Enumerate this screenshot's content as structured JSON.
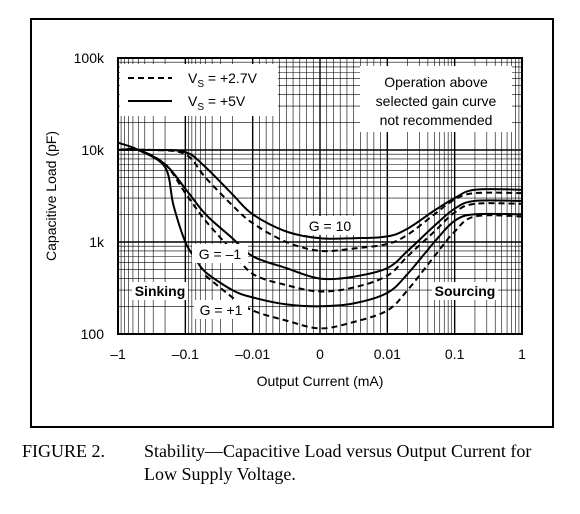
{
  "caption": {
    "figure_number": "FIGURE 2.",
    "text": "Stability—Capacitive Load versus Output Current for Low Supply Voltage."
  },
  "chart_data": {
    "type": "line",
    "xlabel": "Output Current (mA)",
    "ylabel": "Capacitive Load (pF)",
    "x_scale": "symmetric-log",
    "y_scale": "log",
    "xlim": [
      -1,
      1
    ],
    "ylim": [
      100,
      100000
    ],
    "x_ticks": [
      -1,
      -0.1,
      -0.01,
      0,
      0.01,
      0.1,
      1
    ],
    "x_tick_labels": [
      "–1",
      "–0.1",
      "–0.01",
      "0",
      "0.01",
      "0.1",
      "1"
    ],
    "y_ticks": [
      100,
      1000,
      10000,
      100000
    ],
    "y_tick_labels": [
      "100",
      "1k",
      "10k",
      "100k"
    ],
    "grid": true,
    "legend": {
      "placement": "top-left",
      "entries": [
        {
          "style": "dashed",
          "label": "V",
          "subscript": "S",
          "suffix": " = +2.7V"
        },
        {
          "style": "solid",
          "label": "V",
          "subscript": "S",
          "suffix": " = +5V"
        }
      ]
    },
    "annotations": {
      "note_lines": [
        "Operation above",
        "selected gain curve",
        "not recommended"
      ],
      "g10": "G = 10",
      "gm1": "G = –1",
      "gp1": "G = +1",
      "sinking": "Sinking",
      "sourcing": "Sourcing"
    },
    "series": [
      {
        "gain": "G = 10",
        "style": "solid",
        "x": [
          -1,
          -0.3,
          -0.1,
          -0.05,
          -0.02,
          -0.01,
          -0.005,
          0,
          0.005,
          0.01,
          0.02,
          0.05,
          0.1,
          0.2,
          1
        ],
        "y": [
          10000,
          10000,
          9500,
          6500,
          3300,
          2000,
          1300,
          1100,
          1100,
          1150,
          1400,
          2200,
          3000,
          3700,
          3700
        ]
      },
      {
        "gain": "G = 10",
        "style": "dashed",
        "x": [
          -1,
          -0.3,
          -0.1,
          -0.05,
          -0.02,
          -0.01,
          -0.005,
          0,
          0.005,
          0.01,
          0.02,
          0.05,
          0.1,
          0.2,
          1
        ],
        "y": [
          10000,
          10000,
          9000,
          5000,
          2500,
          1600,
          1000,
          800,
          850,
          950,
          1200,
          2000,
          2900,
          3400,
          3400
        ]
      },
      {
        "gain": "G = –1",
        "style": "solid",
        "x": [
          -1,
          -0.5,
          -0.2,
          -0.1,
          -0.05,
          -0.02,
          -0.01,
          -0.005,
          0,
          0.005,
          0.01,
          0.02,
          0.05,
          0.1,
          0.2,
          1
        ],
        "y": [
          10000,
          10000,
          7000,
          3800,
          2000,
          1100,
          700,
          520,
          400,
          420,
          520,
          800,
          1500,
          2300,
          2800,
          2800
        ]
      },
      {
        "gain": "G = –1",
        "style": "dashed",
        "x": [
          -1,
          -0.5,
          -0.2,
          -0.1,
          -0.05,
          -0.02,
          -0.01,
          -0.005,
          0,
          0.005,
          0.01,
          0.02,
          0.05,
          0.1,
          0.2,
          1
        ],
        "y": [
          10000,
          10000,
          7000,
          3400,
          1700,
          800,
          450,
          340,
          290,
          320,
          430,
          700,
          1300,
          2100,
          2600,
          2600
        ]
      },
      {
        "gain": "G = +1",
        "style": "solid",
        "x": [
          -1,
          -0.5,
          -0.2,
          -0.15,
          -0.1,
          -0.07,
          -0.05,
          -0.02,
          -0.01,
          -0.005,
          0,
          0.005,
          0.01,
          0.02,
          0.05,
          0.1,
          0.2,
          1
        ],
        "y": [
          12000,
          10000,
          6500,
          2500,
          1000,
          650,
          470,
          300,
          250,
          210,
          200,
          215,
          280,
          450,
          1000,
          1700,
          2000,
          2000
        ]
      },
      {
        "gain": "G = +1",
        "style": "dashed",
        "x": [
          -0.05,
          -0.02,
          -0.01,
          -0.005,
          0,
          0.005,
          0.01,
          0.02,
          0.05,
          0.1,
          0.2,
          1
        ],
        "y": [
          430,
          250,
          180,
          140,
          115,
          135,
          180,
          300,
          700,
          1300,
          1900,
          1900
        ]
      }
    ]
  }
}
